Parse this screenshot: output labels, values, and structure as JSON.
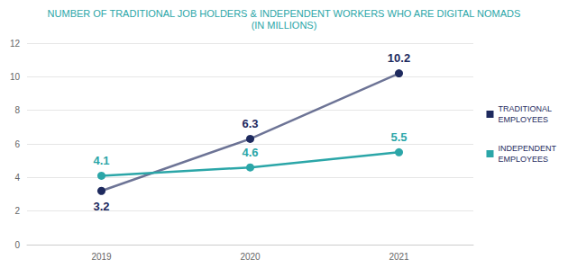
{
  "chart_data": {
    "type": "line",
    "title": "NUMBER OF TRADITIONAL JOB HOLDERS & INDEPENDENT WORKERS WHO ARE DIGITAL NOMADS",
    "subtitle": "(IN MILLIONS)",
    "categories": [
      "2019",
      "2020",
      "2021"
    ],
    "series": [
      {
        "name": "TRADITIONAL EMPLOYEES",
        "color": "#1e2a5e",
        "values": [
          3.2,
          6.3,
          10.2
        ]
      },
      {
        "name": "INDEPENDENT EMPLOYEES",
        "color": "#2ba6a8",
        "values": [
          4.1,
          4.6,
          5.5
        ]
      }
    ],
    "ylim": [
      0,
      12
    ],
    "yticks": [
      0,
      2,
      4,
      6,
      8,
      10,
      12
    ],
    "grid": true,
    "legend": "right",
    "data_labels": true,
    "marker": "circle"
  }
}
